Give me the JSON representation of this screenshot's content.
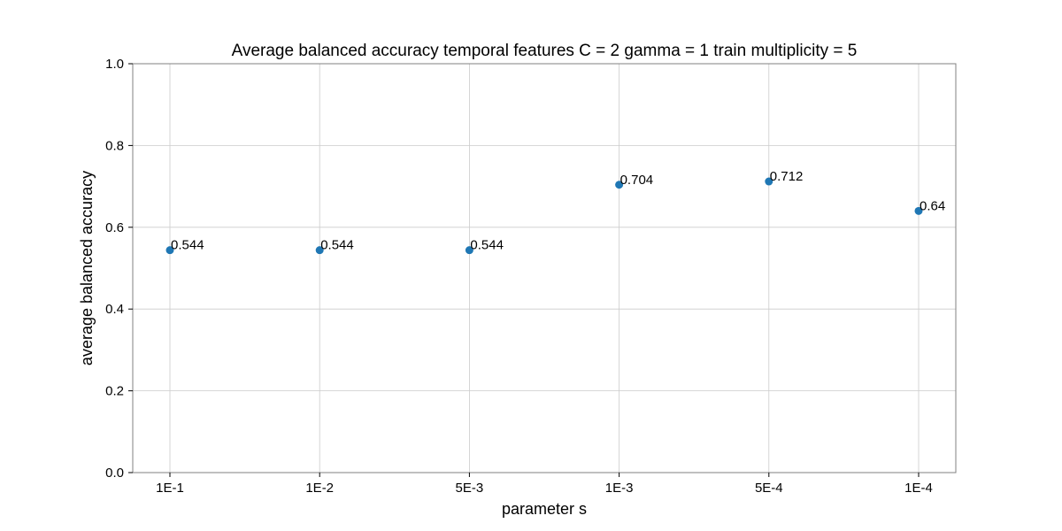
{
  "chart_data": {
    "type": "scatter",
    "title": "Average balanced accuracy temporal features C = 2 gamma = 1 train multiplicity = 5",
    "xlabel": "parameter s",
    "ylabel": "average balanced accuracy",
    "categories": [
      "1E-1",
      "1E-2",
      "5E-3",
      "1E-3",
      "5E-4",
      "1E-4"
    ],
    "values": [
      0.544,
      0.544,
      0.544,
      0.704,
      0.712,
      0.64
    ],
    "data_labels": [
      "0.544",
      "0.544",
      "0.544",
      "0.704",
      "0.712",
      "0.64"
    ],
    "ylim": [
      0,
      1
    ],
    "yticks": [
      "0.0",
      "0.2",
      "0.4",
      "0.6",
      "0.8",
      "1.0"
    ],
    "ytick_values": [
      0,
      0.2,
      0.4,
      0.6,
      0.8,
      1.0
    ],
    "grid": true,
    "colors": {
      "point": "#1f77b4"
    }
  }
}
